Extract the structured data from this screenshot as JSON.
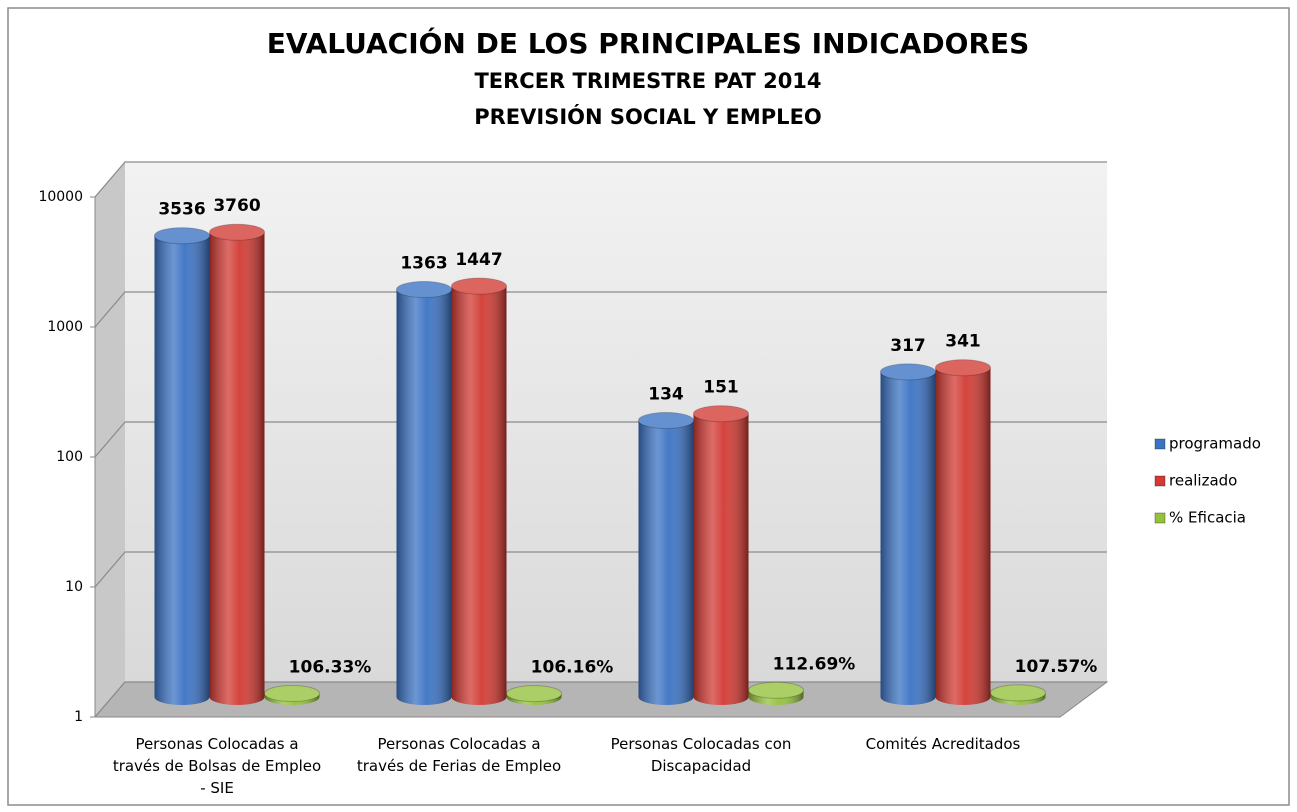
{
  "chart_data": {
    "type": "bar3d",
    "title": "EVALUACIÓN DE LOS PRINCIPALES INDICADORES",
    "subtitle": [
      "TERCER TRIMESTRE PAT 2014",
      "PREVISIÓN SOCIAL Y EMPLEO"
    ],
    "categories": [
      "Personas Colocadas a través de Bolsas de Empleo - SIE",
      "Personas Colocadas a través de Ferias de Empleo",
      "Personas Colocadas con Discapacidad",
      "Comités Acreditados"
    ],
    "series": [
      {
        "name": "programado",
        "color": "#3b73c4",
        "values": [
          3536,
          1363,
          134,
          317
        ]
      },
      {
        "name": "realizado",
        "color": "#d23a33",
        "values": [
          3760,
          1447,
          151,
          341
        ]
      },
      {
        "name": "% Eficacia",
        "color": "#94c23c",
        "values": [
          1.0633,
          1.0616,
          1.1269,
          1.0757
        ],
        "value_labels": [
          "106.33%",
          "106.16%",
          "112.69%",
          "107.57%"
        ]
      }
    ],
    "ylim": [
      1,
      10000
    ],
    "yticks": [
      1,
      10,
      100,
      1000,
      10000
    ],
    "yscale": "log",
    "grid": true,
    "legend": "right"
  }
}
